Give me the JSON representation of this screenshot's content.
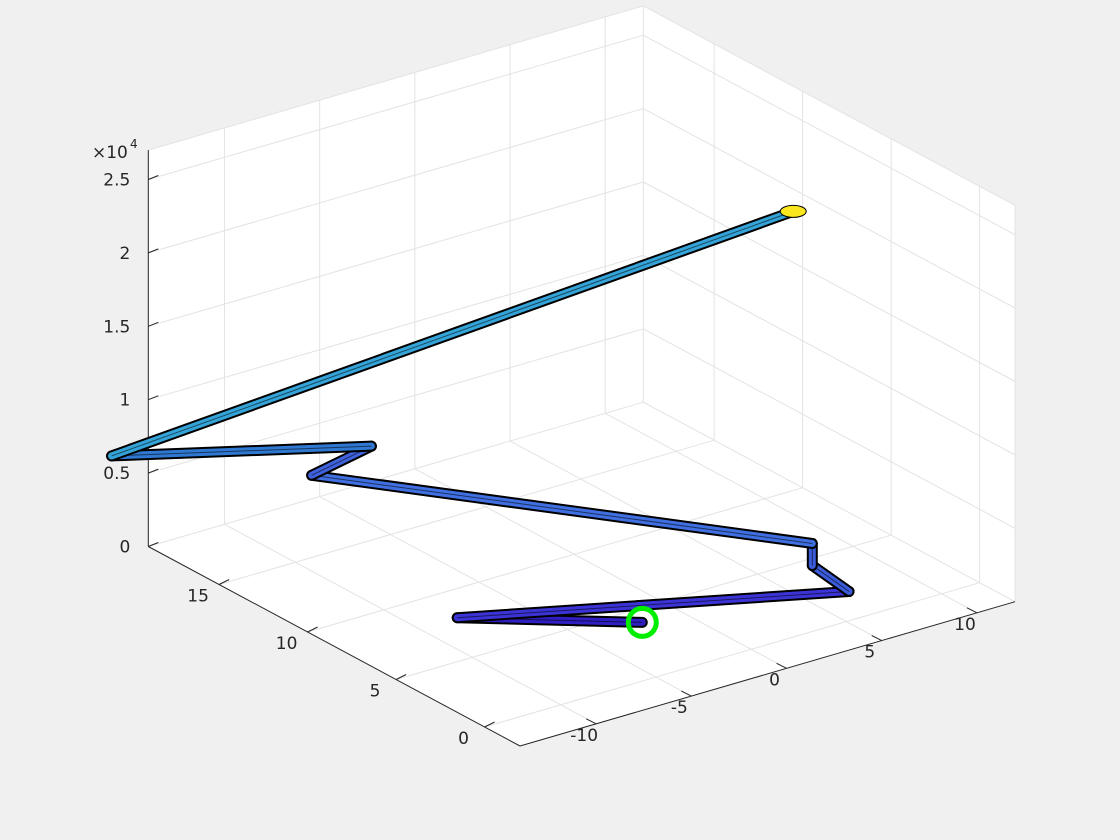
{
  "chart_data": {
    "type": "3d-line-tube",
    "title": "",
    "xlabel": "",
    "ylabel": "",
    "zlabel": "",
    "z_exponent_label": "×10",
    "z_exponent_power": "4",
    "grid": true,
    "view": "3d-perspective",
    "x_ticks": [
      {
        "value": -10,
        "label": "-10"
      },
      {
        "value": -5,
        "label": "-5"
      },
      {
        "value": 0,
        "label": "0"
      },
      {
        "value": 5,
        "label": "5"
      },
      {
        "value": 10,
        "label": "10"
      }
    ],
    "y_ticks": [
      {
        "value": 0,
        "label": "0"
      },
      {
        "value": 5,
        "label": "5"
      },
      {
        "value": 10,
        "label": "10"
      },
      {
        "value": 15,
        "label": "15"
      }
    ],
    "z_ticks": [
      {
        "value": 0,
        "label": "0"
      },
      {
        "value": 5000,
        "label": "0.5"
      },
      {
        "value": 10000,
        "label": "1"
      },
      {
        "value": 15000,
        "label": "1.5"
      },
      {
        "value": 20000,
        "label": "2"
      },
      {
        "value": 25000,
        "label": "2.5"
      }
    ],
    "xlim": [
      -14,
      12
    ],
    "ylim": [
      -2,
      19
    ],
    "zlim": [
      0,
      27000
    ],
    "path_points": [
      {
        "x": -2,
        "y": 4,
        "z": 0
      },
      {
        "x": -8,
        "y": 8,
        "z": 0
      },
      {
        "x": 7,
        "y": 2,
        "z": 0
      },
      {
        "x": 6,
        "y": 3,
        "z": 1500
      },
      {
        "x": 6,
        "y": 3,
        "z": 3000
      },
      {
        "x": -11,
        "y": 13,
        "z": 7600
      },
      {
        "x": -6,
        "y": 15,
        "z": 6400
      },
      {
        "x": -15,
        "y": 20,
        "z": 5900
      },
      {
        "x": 5,
        "y": 3,
        "z": 26000
      }
    ],
    "segment_colors": [
      "#2f1ec2",
      "#3b33d6",
      "#3b5bd9",
      "#3b5bd9",
      "#3f6fe0",
      "#3f62dd",
      "#2f78d2",
      "#34a3d8",
      "#fae61e"
    ],
    "start_marker": {
      "x": -2,
      "y": 4,
      "z": 0,
      "color": "#00ee00"
    },
    "end_marker_color": "#fae61e"
  },
  "colors": {
    "figure_bg": "#f0f0f0",
    "axes_bg": "#ffffff",
    "grid": "#e3e3e3",
    "axis_line": "#262626",
    "tube_edge": "#000000"
  }
}
